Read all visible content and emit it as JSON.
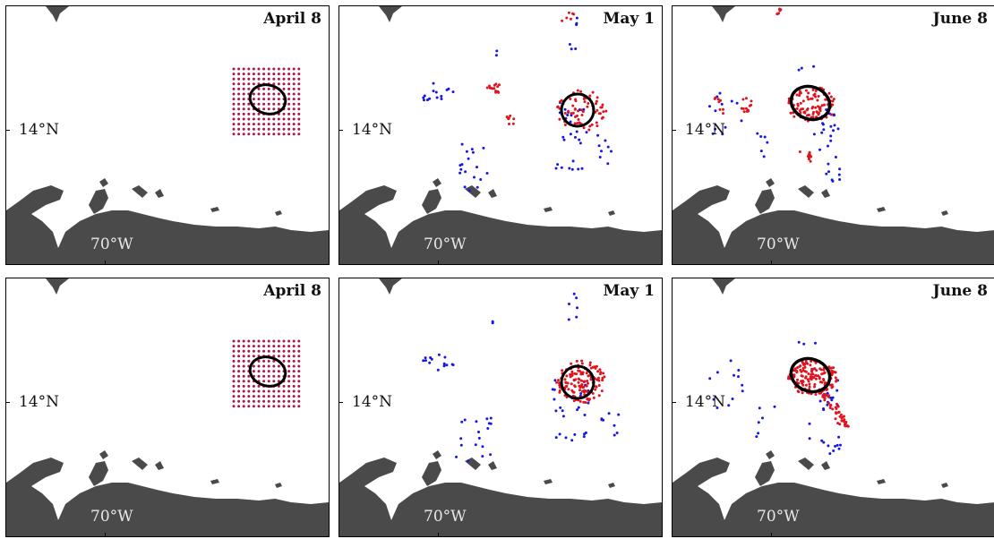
{
  "figure": {
    "rows": [
      {
        "panels": [
          {
            "date_label": "April 8",
            "lat_label": "14°N",
            "lon_label": "70°W",
            "stage": 0
          },
          {
            "date_label": "May 1",
            "lat_label": "14°N",
            "lon_label": "70°W",
            "stage": 1
          },
          {
            "date_label": "June 8",
            "lat_label": "14°N",
            "lon_label": "70°W",
            "stage": 2
          }
        ]
      },
      {
        "panels": [
          {
            "date_label": "April 8",
            "lat_label": "14°N",
            "lon_label": "70°W",
            "stage": 0
          },
          {
            "date_label": "May 1",
            "lat_label": "14°N",
            "lon_label": "70°W",
            "stage": 1
          },
          {
            "date_label": "June 8",
            "lat_label": "14°N",
            "lon_label": "70°W",
            "stage": 2
          }
        ]
      }
    ]
  },
  "colors": {
    "land": "#4a4a4a",
    "particle_inside": "#e0141e",
    "particle_outside": "#1418e0",
    "initial_grid": "#b0154a",
    "eddy_boundary": "#000000"
  }
}
